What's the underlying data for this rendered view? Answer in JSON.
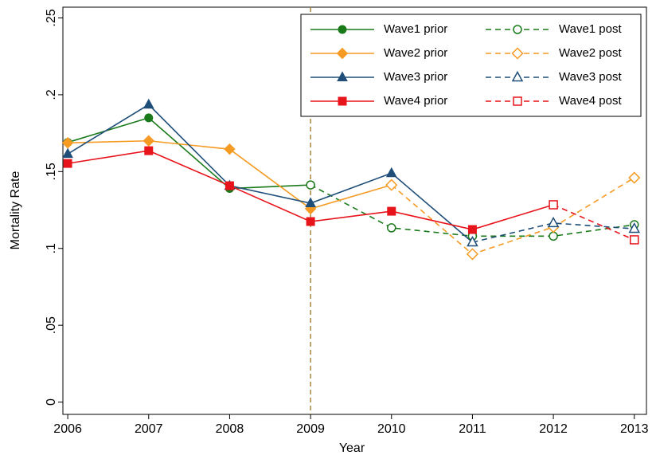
{
  "chart_data": {
    "type": "line",
    "xlabel": "Year",
    "ylabel": "Mortality Rate",
    "x": [
      2006,
      2007,
      2008,
      2009,
      2010,
      2011,
      2012,
      2013
    ],
    "xlim": [
      2005.94,
      2013.15
    ],
    "xticks": [
      2006,
      2007,
      2008,
      2009,
      2010,
      2011,
      2012,
      2013
    ],
    "ylim": [
      -0.008,
      0.257
    ],
    "yticks": [
      {
        "value": 0,
        "label": "0"
      },
      {
        "value": 0.05,
        "label": ".05"
      },
      {
        "value": 0.1,
        "label": ".1"
      },
      {
        "value": 0.15,
        "label": ".15"
      },
      {
        "value": 0.2,
        "label": ".2"
      },
      {
        "value": 0.25,
        "label": ".25"
      }
    ],
    "reference_x": 2009,
    "reference_color": "#a88437",
    "legend": "top-right",
    "series": [
      {
        "name": "Wave1 prior",
        "color": "#1a7a1a",
        "marker": "circle",
        "filled": true,
        "dashed": false,
        "values": [
          0.169,
          0.185,
          0.139,
          0.1413,
          null,
          null,
          null,
          null
        ]
      },
      {
        "name": "Wave1 post",
        "color": "#1a7a1a",
        "marker": "circle",
        "filled": false,
        "dashed": true,
        "values": [
          null,
          null,
          null,
          0.1413,
          0.1134,
          0.108,
          0.108,
          0.1154
        ]
      },
      {
        "name": "Wave2 prior",
        "color": "#f59a23",
        "marker": "diamond",
        "filled": true,
        "dashed": false,
        "values": [
          0.1687,
          0.17,
          0.1646,
          0.1258,
          0.1413,
          null,
          null,
          null
        ]
      },
      {
        "name": "Wave2 post",
        "color": "#f59a23",
        "marker": "diamond",
        "filled": false,
        "dashed": true,
        "values": [
          null,
          null,
          null,
          null,
          0.1413,
          0.0963,
          0.1139,
          0.146
        ]
      },
      {
        "name": "Wave3 prior",
        "color": "#1f4e79",
        "marker": "triangle",
        "filled": true,
        "dashed": false,
        "values": [
          0.1615,
          0.1936,
          0.1408,
          0.1294,
          0.149,
          0.104,
          null,
          null
        ]
      },
      {
        "name": "Wave3 post",
        "color": "#1f4e79",
        "marker": "triangle",
        "filled": false,
        "dashed": true,
        "values": [
          null,
          null,
          null,
          null,
          null,
          0.104,
          0.1165,
          0.1128
        ]
      },
      {
        "name": "Wave4 prior",
        "color": "#e8141c",
        "marker": "square",
        "filled": true,
        "dashed": false,
        "values": [
          0.1553,
          0.1636,
          0.1408,
          0.1175,
          0.1242,
          0.1123,
          0.1284,
          null
        ]
      },
      {
        "name": "Wave4 post",
        "color": "#e8141c",
        "marker": "square",
        "filled": false,
        "dashed": true,
        "values": [
          null,
          null,
          null,
          null,
          null,
          null,
          0.1284,
          0.1056
        ]
      }
    ]
  }
}
